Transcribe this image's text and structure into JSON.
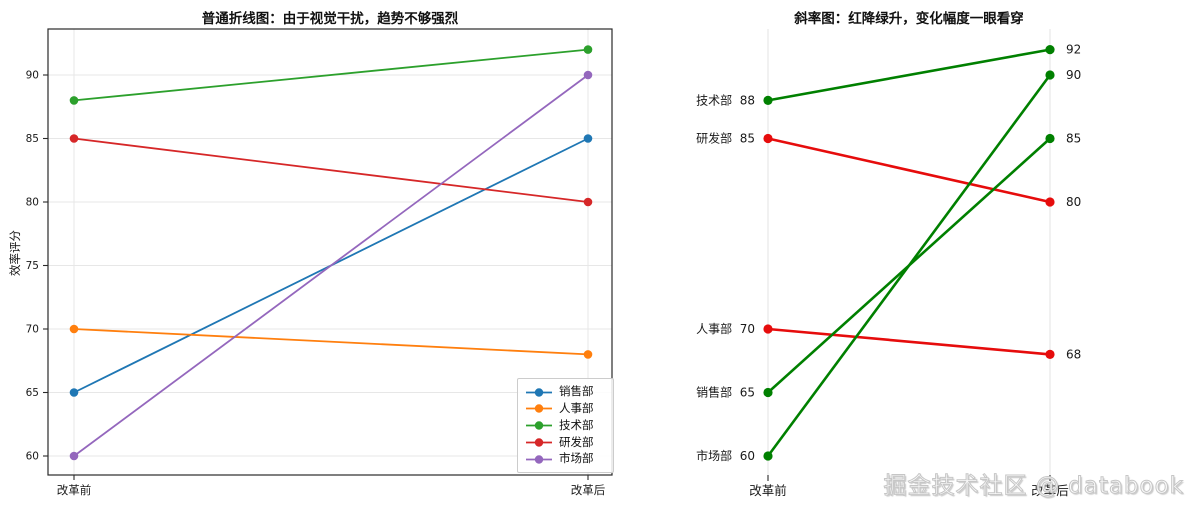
{
  "watermark": "掘金技术社区 @ databook",
  "chart_data": [
    {
      "type": "line",
      "title": "普通折线图：由于视觉干扰，趋势不够强烈",
      "xlabel": "",
      "ylabel": "效率评分",
      "categories": [
        "改革前",
        "改革后"
      ],
      "yticks": [
        60,
        65,
        70,
        75,
        80,
        85,
        90
      ],
      "ylim": [
        58.5,
        93.6
      ],
      "grid": true,
      "legend_position": "lower right",
      "series": [
        {
          "name": "销售部",
          "values": [
            65,
            85
          ],
          "color": "#1f77b4"
        },
        {
          "name": "人事部",
          "values": [
            70,
            68
          ],
          "color": "#ff7f0e"
        },
        {
          "name": "技术部",
          "values": [
            88,
            92
          ],
          "color": "#2ca02c"
        },
        {
          "name": "研发部",
          "values": [
            85,
            80
          ],
          "color": "#d62728"
        },
        {
          "name": "市场部",
          "values": [
            60,
            90
          ],
          "color": "#9467bd"
        }
      ]
    },
    {
      "type": "slope",
      "title": "斜率图：红降绿升，变化幅度一眼看穿",
      "categories": [
        "改革前",
        "改革后"
      ],
      "grid": false,
      "colors": {
        "up": "#008000",
        "down": "#e60c0c"
      },
      "series": [
        {
          "name": "技术部",
          "values": [
            88,
            92
          ]
        },
        {
          "name": "研发部",
          "values": [
            85,
            80
          ]
        },
        {
          "name": "人事部",
          "values": [
            70,
            68
          ]
        },
        {
          "name": "销售部",
          "values": [
            65,
            85
          ]
        },
        {
          "name": "市场部",
          "values": [
            60,
            90
          ]
        }
      ]
    }
  ]
}
